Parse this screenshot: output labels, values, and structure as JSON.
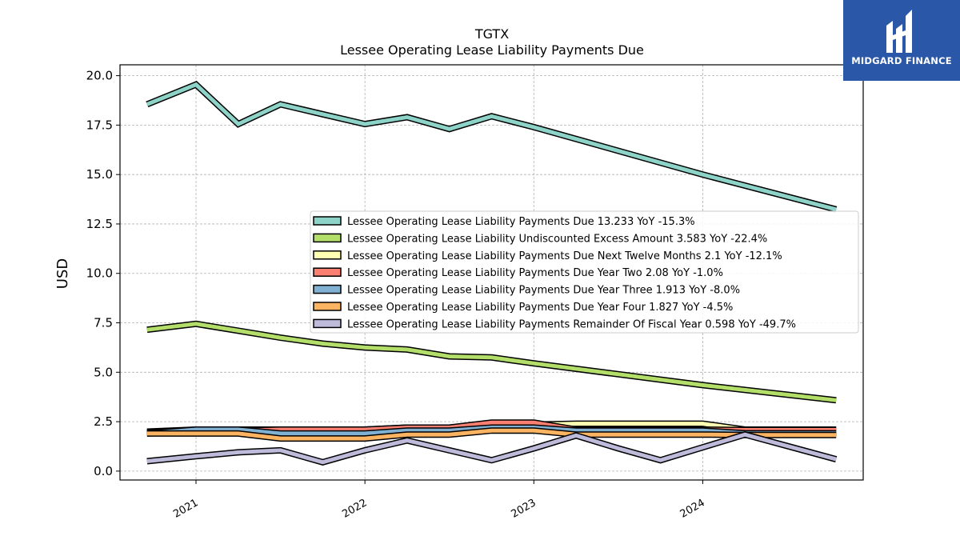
{
  "brand": {
    "name": "MIDGARD FINANCE",
    "bg_color": "#2b57a8"
  },
  "chart_data": {
    "type": "line",
    "title": "TGTX",
    "subtitle": "Lessee Operating Lease Liability Payments Due",
    "ylabel": "USD",
    "xlabel": "",
    "ylim": [
      -0.45,
      20.55
    ],
    "xlim": [
      2020.55,
      2024.95
    ],
    "yticks": [
      "0.0",
      "2.5",
      "5.0",
      "7.5",
      "10.0",
      "12.5",
      "15.0",
      "17.5",
      "20.0"
    ],
    "ytick_values": [
      0,
      2.5,
      5,
      7.5,
      10,
      12.5,
      15,
      17.5,
      20
    ],
    "xticks": [
      "2021",
      "2022",
      "2023",
      "2024"
    ],
    "xtick_values": [
      2021,
      2022,
      2023,
      2024
    ],
    "grid": true,
    "legend_position": "center-right",
    "series": [
      {
        "name": "Lessee Operating Lease Liability Payments Due  13.233 YoY -15.3%",
        "color": "#8dd3c7",
        "x": [
          2020.71,
          2021.0,
          2021.25,
          2021.5,
          2021.75,
          2022.0,
          2022.25,
          2022.5,
          2022.75,
          2023.0,
          2024.0,
          2024.79
        ],
        "y": [
          18.55,
          19.55,
          17.55,
          18.55,
          18.05,
          17.55,
          17.9,
          17.3,
          17.95,
          17.4,
          15.0,
          13.233
        ]
      },
      {
        "name": "Lessee Operating Lease Liability Undiscounted Excess Amount  3.583 YoY -22.4%",
        "color": "#b3de69",
        "x": [
          2020.71,
          2021.0,
          2021.25,
          2021.5,
          2021.75,
          2022.0,
          2022.25,
          2022.5,
          2022.75,
          2023.0,
          2024.0,
          2024.79
        ],
        "y": [
          7.15,
          7.45,
          7.1,
          6.75,
          6.45,
          6.25,
          6.15,
          5.8,
          5.75,
          5.45,
          4.35,
          3.583
        ]
      },
      {
        "name": "Lessee Operating Lease Liability Payments Due Next Twelve Months  2.1 YoY -12.1%",
        "color": "#ffffb3",
        "x": [
          2020.71,
          2021.0,
          2021.25,
          2021.5,
          2021.75,
          2022.0,
          2022.25,
          2022.5,
          2022.75,
          2023.0,
          2023.25,
          2023.5,
          2023.75,
          2024.0,
          2024.25,
          2024.79
        ],
        "y": [
          2.0,
          2.1,
          2.1,
          2.1,
          2.1,
          2.1,
          2.2,
          2.2,
          2.3,
          2.35,
          2.4,
          2.4,
          2.4,
          2.4,
          2.1,
          2.1
        ]
      },
      {
        "name": "Lessee Operating Lease Liability Payments Due Year Two  2.08 YoY -1.0%",
        "color": "#fb8072",
        "x": [
          2020.71,
          2021.0,
          2021.25,
          2021.5,
          2021.75,
          2022.0,
          2022.25,
          2022.5,
          2022.75,
          2023.0,
          2023.25,
          2023.5,
          2023.75,
          2024.0,
          2024.25,
          2024.79
        ],
        "y": [
          1.95,
          2.05,
          2.05,
          2.1,
          2.1,
          2.1,
          2.2,
          2.2,
          2.45,
          2.45,
          2.1,
          2.1,
          2.1,
          2.1,
          2.08,
          2.08
        ]
      },
      {
        "name": "Lessee Operating Lease Liability Payments Due Year Three  1.913 YoY -8.0%",
        "color": "#80b1d3",
        "x": [
          2020.71,
          2021.0,
          2021.25,
          2021.5,
          2021.75,
          2022.0,
          2022.25,
          2022.5,
          2022.75,
          2023.0,
          2023.25,
          2023.5,
          2023.75,
          2024.0,
          2024.25,
          2024.79
        ],
        "y": [
          1.9,
          2.1,
          2.1,
          1.9,
          1.9,
          1.9,
          2.05,
          2.05,
          2.2,
          2.2,
          2.05,
          2.05,
          2.05,
          2.05,
          1.913,
          1.913
        ]
      },
      {
        "name": "Lessee Operating Lease Liability Payments Due Year Four  1.827 YoY -4.5%",
        "color": "#fdb462",
        "x": [
          2020.71,
          2021.0,
          2021.25,
          2021.5,
          2021.75,
          2022.0,
          2022.25,
          2022.5,
          2022.75,
          2023.0,
          2023.25,
          2023.5,
          2023.75,
          2024.0,
          2024.25,
          2024.79
        ],
        "y": [
          1.9,
          1.9,
          1.9,
          1.65,
          1.65,
          1.65,
          1.85,
          1.85,
          2.05,
          2.05,
          1.85,
          1.85,
          1.85,
          1.85,
          1.827,
          1.827
        ]
      },
      {
        "name": "Lessee Operating Lease Liability Payments Remainder Of Fiscal Year  0.598 YoY -49.7%",
        "color": "#bebada",
        "x": [
          2020.71,
          2021.0,
          2021.25,
          2021.5,
          2021.75,
          2022.0,
          2022.25,
          2022.5,
          2022.75,
          2023.0,
          2023.25,
          2023.5,
          2023.75,
          2024.0,
          2024.25,
          2024.79
        ],
        "y": [
          0.5,
          0.75,
          0.95,
          1.05,
          0.45,
          1.05,
          1.55,
          1.05,
          0.55,
          1.15,
          1.8,
          1.15,
          0.55,
          1.2,
          1.85,
          0.598
        ]
      }
    ]
  }
}
